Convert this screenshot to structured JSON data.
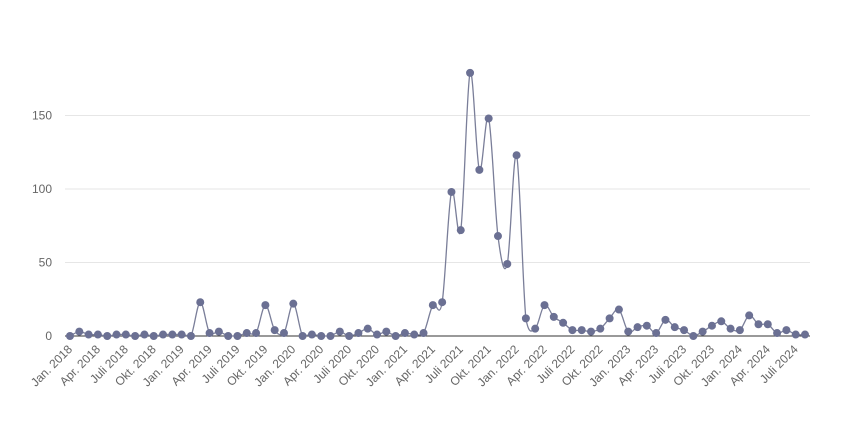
{
  "chart_data": {
    "type": "line",
    "title": "",
    "xlabel": "",
    "ylabel": "",
    "ylim": [
      0,
      190
    ],
    "y_ticks": [
      0,
      50,
      100,
      150
    ],
    "grid": true,
    "legend": "none",
    "series_color": "#6b7093",
    "x_tick_labels": [
      "Jan. 2018",
      "Apr. 2018",
      "Juli 2018",
      "Okt. 2018",
      "Jan. 2019",
      "Apr. 2019",
      "Juli 2019",
      "Okt. 2019",
      "Jan. 2020",
      "Apr. 2020",
      "Juli 2020",
      "Okt. 2020",
      "Jan. 2021",
      "Apr. 2021",
      "Juli 2021",
      "Okt. 2021",
      "Jan. 2022",
      "Apr. 2022",
      "Juli 2022",
      "Okt. 2022",
      "Jan. 2023",
      "Apr. 2023",
      "Juli 2023",
      "Okt. 2023",
      "Jan. 2024",
      "Apr. 2024",
      "Juli 2024"
    ],
    "series": [
      {
        "values": [
          0,
          3,
          1,
          1,
          0,
          1,
          1,
          0,
          1,
          0,
          1,
          1,
          1,
          0,
          23,
          2,
          3,
          0,
          0,
          2,
          2,
          21,
          4,
          2,
          22,
          0,
          1,
          0,
          0,
          3,
          0,
          2,
          5,
          1,
          3,
          0,
          2,
          1,
          2,
          21,
          23,
          98,
          72,
          179,
          113,
          148,
          68,
          49,
          123,
          12,
          5,
          21,
          13,
          9,
          4,
          4,
          3,
          5,
          12,
          18,
          3,
          6,
          7,
          2,
          11,
          6,
          4,
          0,
          3,
          7,
          10,
          5,
          4,
          14,
          8,
          8,
          2,
          4,
          1,
          1
        ]
      }
    ]
  }
}
